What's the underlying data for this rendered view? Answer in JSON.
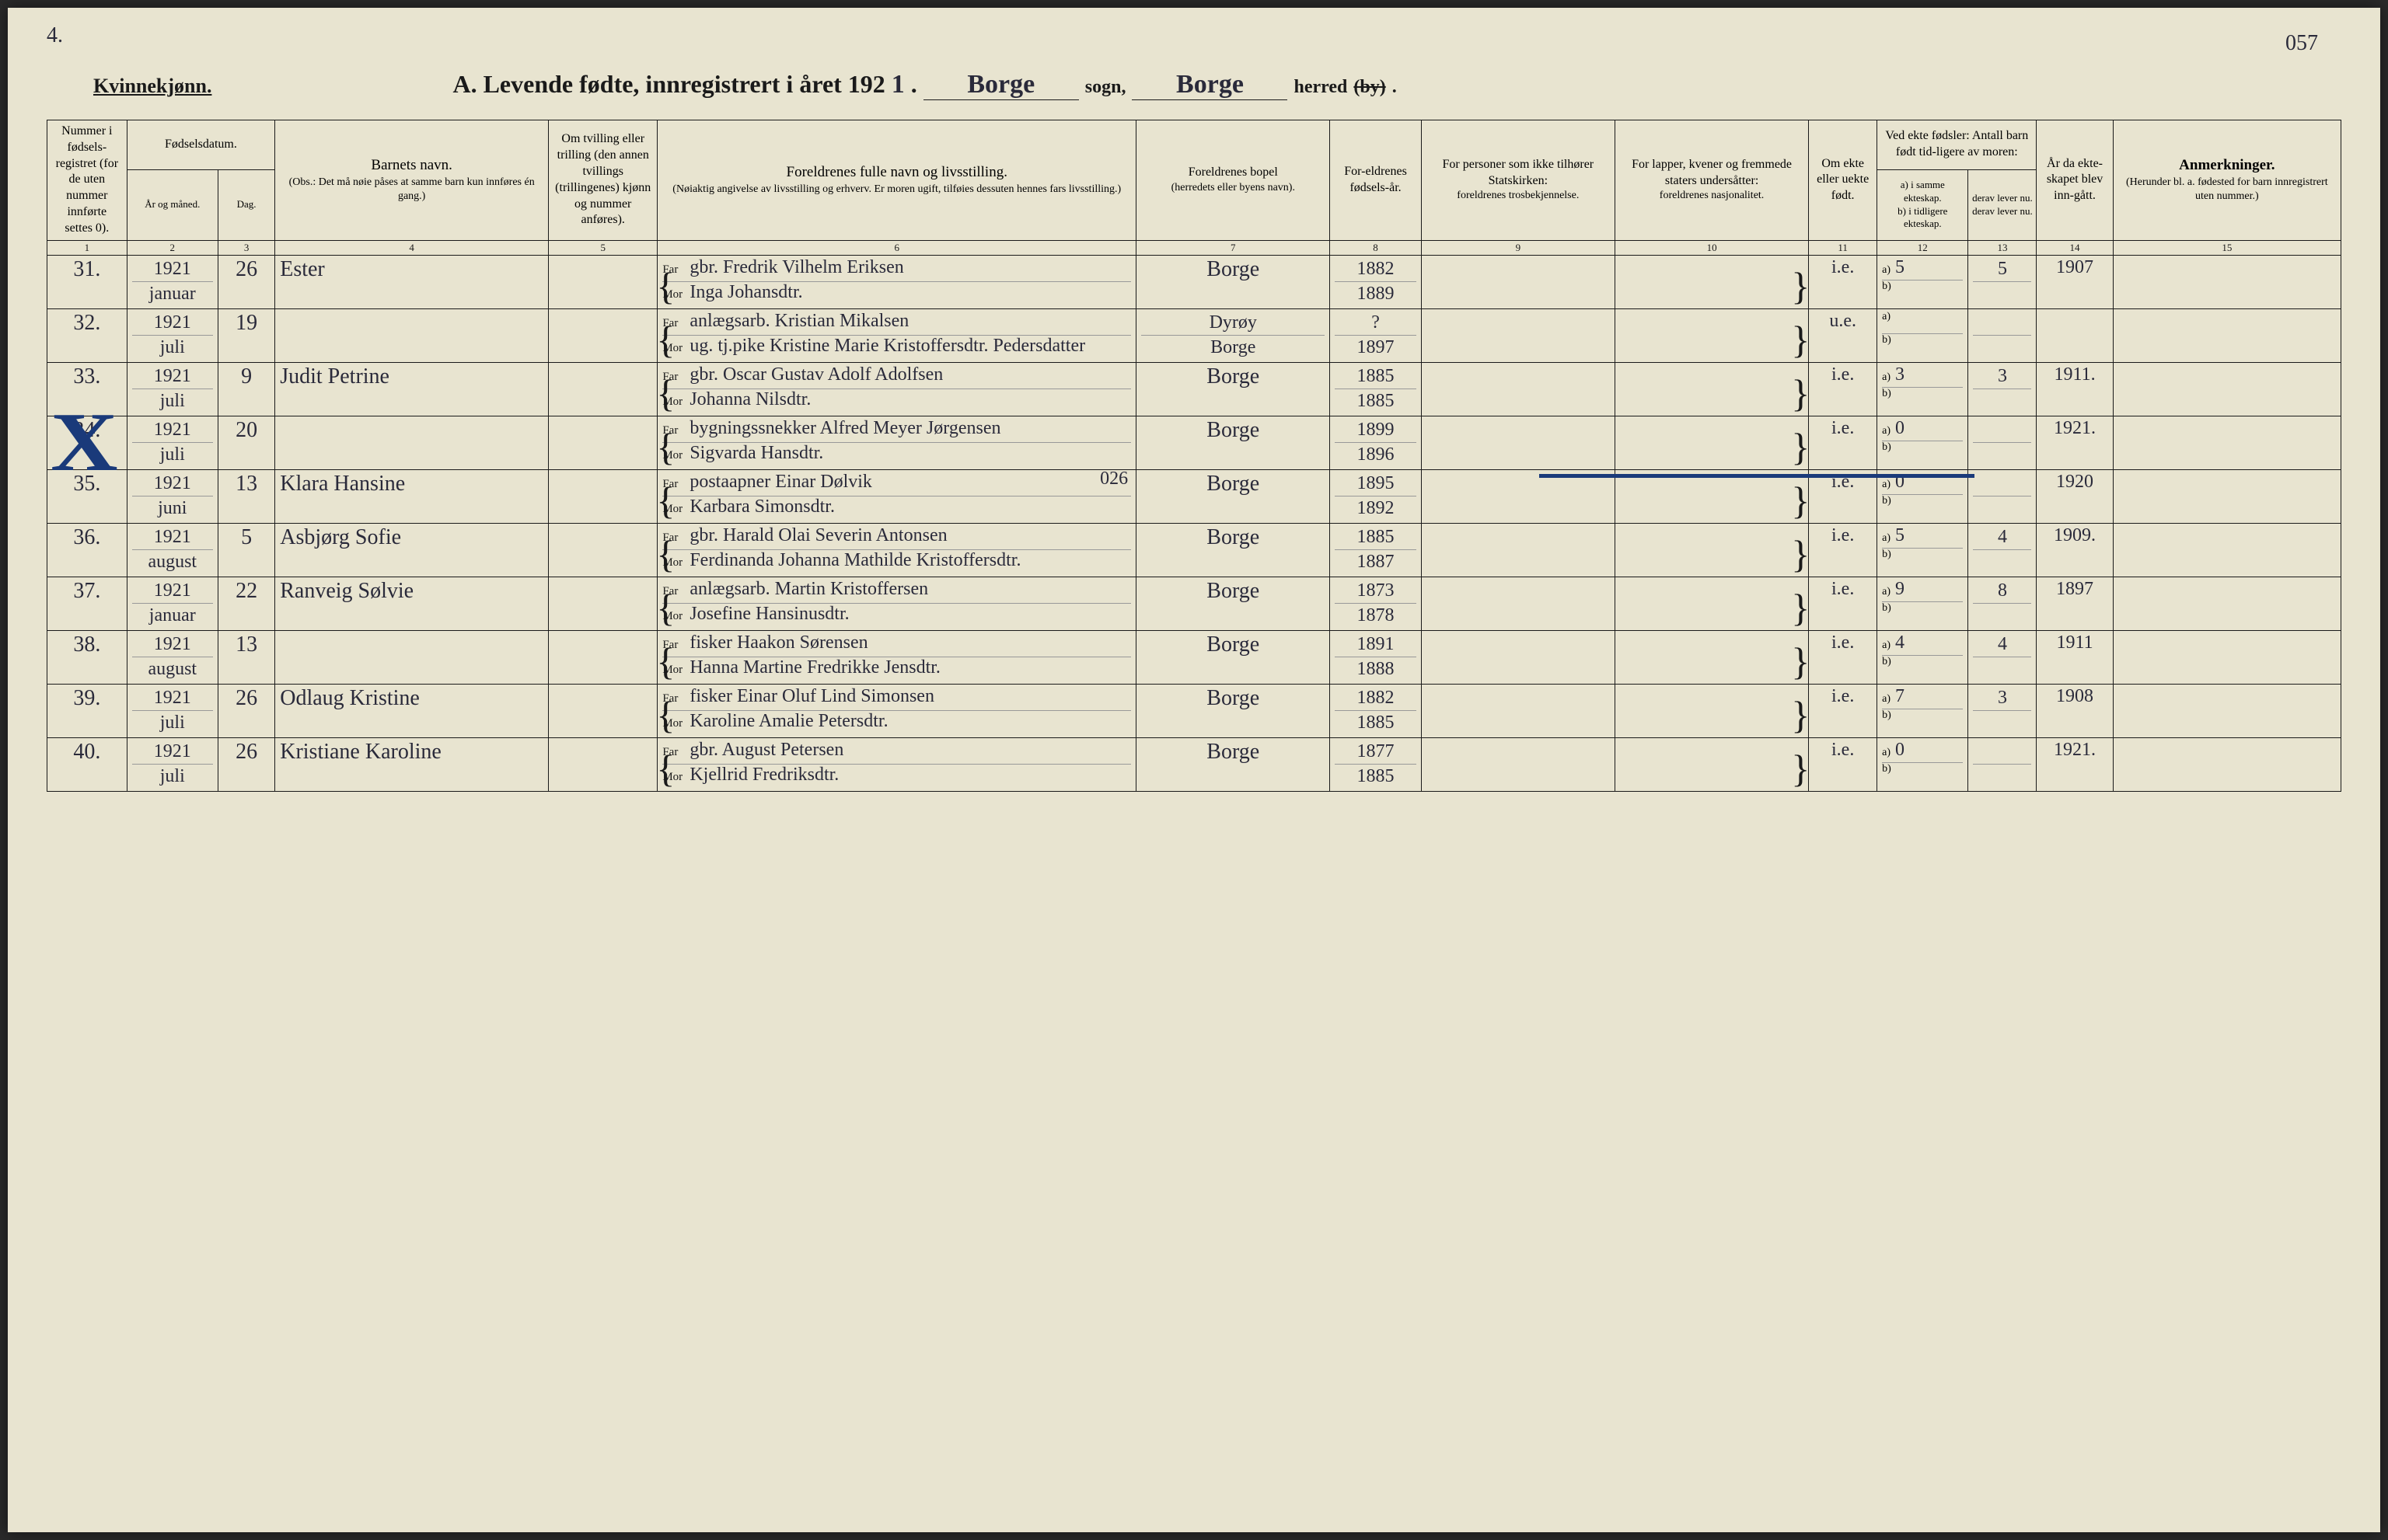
{
  "page_corner_upper_left": "4.",
  "page_corner_upper_right": "057",
  "gender_heading": "Kvinnekjønn.",
  "title_prefix": "A.  Levende  fødte,  innregistrert  i  året  192",
  "title_year_suffix": "1",
  "sogn_value": "Borge",
  "sogn_label": "sogn,",
  "herred_value": "Borge",
  "herred_label": "herred",
  "herred_struck": "(by)",
  "columns": {
    "c1": "Nummer i fødsels-registret (for de uten nummer innførte settes 0).",
    "c2_top": "Fødselsdatum.",
    "c2a": "År og måned.",
    "c2b": "Dag.",
    "c4_top": "Barnets navn.",
    "c4_sub": "(Obs.:  Det må nøie påses at samme barn kun innføres én gang.)",
    "c5": "Om tvilling eller trilling (den annen tvillings (trillingenes) kjønn og nummer anføres).",
    "c6_top": "Foreldrenes fulle navn og livsstilling.",
    "c6_sub": "(Nøiaktig angivelse av livsstilling og erhverv. Er moren ugift, tilføies dessuten hennes fars livsstilling.)",
    "c7_top": "Foreldrenes bopel",
    "c7_sub": "(herredets eller byens navn).",
    "c8": "For-eldrenes fødsels-år.",
    "c9_top": "For personer som ikke tilhører Statskirken:",
    "c9_sub": "foreldrenes trosbekjennelse.",
    "c10_top": "For lapper, kvener og fremmede staters undersåtter:",
    "c10_sub": "foreldrenes nasjonalitet.",
    "c11": "Om ekte eller uekte født.",
    "c12_top": "Ved ekte fødsler: Antall barn født tid-ligere av moren:",
    "c12a": "a) i samme ekteskap.",
    "c12b": "derav lever nu.",
    "c12c": "b) i tidligere ekteskap.",
    "c12d": "derav lever nu.",
    "c14": "År da ekte-skapet blev inn-gått.",
    "c15_top": "Anmerkninger.",
    "c15_sub": "(Herunder bl. a. fødested for barn innregistrert uten nummer.)"
  },
  "colnums": [
    "1",
    "2",
    "3",
    "4",
    "5",
    "6",
    "7",
    "8",
    "9",
    "10",
    "11",
    "12",
    "13",
    "14",
    "15"
  ],
  "far_label": "Far",
  "mor_label": "Mor",
  "rows": [
    {
      "n": "31.",
      "ym": "1921 januar",
      "d": "26",
      "child": "Ester",
      "far": "gbr. Fredrik Vilhelm Eriksen",
      "mor": "Inga Johansdtr.",
      "residence": "Borge",
      "fy": "1882",
      "my": "1889",
      "legit": "i.e.",
      "a": "5",
      "alive": "5",
      "marriage": "1907"
    },
    {
      "n": "32.",
      "ym": "1921 juli",
      "d": "19",
      "child": "",
      "far": "anlægsarb. Kristian Mikalsen",
      "mor": "ug. tj.pike Kristine Marie Kristoffersdtr. Pedersdatter",
      "residence_f": "Dyrøy",
      "residence_m": "Borge",
      "fy": "?",
      "my": "1897",
      "legit": "u.e.",
      "a": "",
      "alive": "",
      "marriage": ""
    },
    {
      "n": "33.",
      "ym": "1921 juli",
      "d": "9",
      "child": "Judit Petrine",
      "far": "gbr. Oscar Gustav Adolf Adolfsen",
      "mor": "Johanna Nilsdtr.",
      "residence": "Borge",
      "fy": "1885",
      "my": "1885",
      "legit": "i.e.",
      "a": "3",
      "alive": "3",
      "marriage": "1911."
    },
    {
      "n": "34.",
      "ym": "1921 juli",
      "d": "20",
      "child": "",
      "far": "bygningssnekker Alfred Meyer Jørgensen",
      "mor": "Sigvarda Hansdtr.",
      "residence": "Borge",
      "fy": "1899",
      "my": "1896",
      "legit": "i.e.",
      "a": "0",
      "alive": "",
      "marriage": "1921."
    },
    {
      "n": "35.",
      "ym": "1921 juni",
      "d": "13",
      "child": "Klara Hansine",
      "far": "postaapner Einar Dølvik",
      "mor": "Karbara Simonsdtr.",
      "residence": "Borge",
      "fy": "1895",
      "my": "1892",
      "legit": "i.e.",
      "a": "0",
      "alive": "",
      "marriage": "1920",
      "extra": "026"
    },
    {
      "n": "36.",
      "ym": "1921 august",
      "d": "5",
      "child": "Asbjørg Sofie",
      "far": "gbr. Harald Olai Severin Antonsen",
      "mor": "Ferdinanda Johanna Mathilde Kristoffersdtr.",
      "residence": "Borge",
      "fy": "1885",
      "my": "1887",
      "legit": "i.e.",
      "a": "5",
      "alive": "4",
      "marriage": "1909."
    },
    {
      "n": "37.",
      "ym": "1921 januar",
      "d": "22",
      "child": "Ranveig Sølvie",
      "far": "anlægsarb. Martin Kristoffersen",
      "mor": "Josefine Hansinusdtr.",
      "residence": "Borge",
      "fy": "1873",
      "my": "1878",
      "legit": "i.e.",
      "a": "9",
      "alive": "8",
      "marriage": "1897"
    },
    {
      "n": "38.",
      "ym": "1921 august",
      "d": "13",
      "child": "",
      "far": "fisker Haakon Sørensen",
      "mor": "Hanna Martine Fredrikke Jensdtr.",
      "residence": "Borge",
      "fy": "1891",
      "my": "1888",
      "legit": "i.e.",
      "a": "4",
      "alive": "4",
      "marriage": "1911"
    },
    {
      "n": "39.",
      "ym": "1921 juli",
      "d": "26",
      "child": "Odlaug Kristine",
      "far": "fisker Einar Oluf Lind Simonsen",
      "mor": "Karoline Amalie Petersdtr.",
      "residence": "Borge",
      "fy": "1882",
      "my": "1885",
      "legit": "i.e.",
      "a": "7",
      "alive": "3",
      "marriage": "1908"
    },
    {
      "n": "40.",
      "ym": "1921 juli",
      "d": "26",
      "child": "Kristiane Karoline",
      "far": "gbr. August Petersen",
      "mor": "Kjellrid Fredriksdtr.",
      "residence": "Borge",
      "fy": "1877",
      "my": "1885",
      "legit": "i.e.",
      "a": "0",
      "alive": "",
      "marriage": "1921."
    }
  ],
  "colors": {
    "paper": "#e8e4d0",
    "ink_print": "#1a1a1a",
    "ink_hand": "#2a2a3a",
    "blue_pencil": "#1a3a7a"
  }
}
